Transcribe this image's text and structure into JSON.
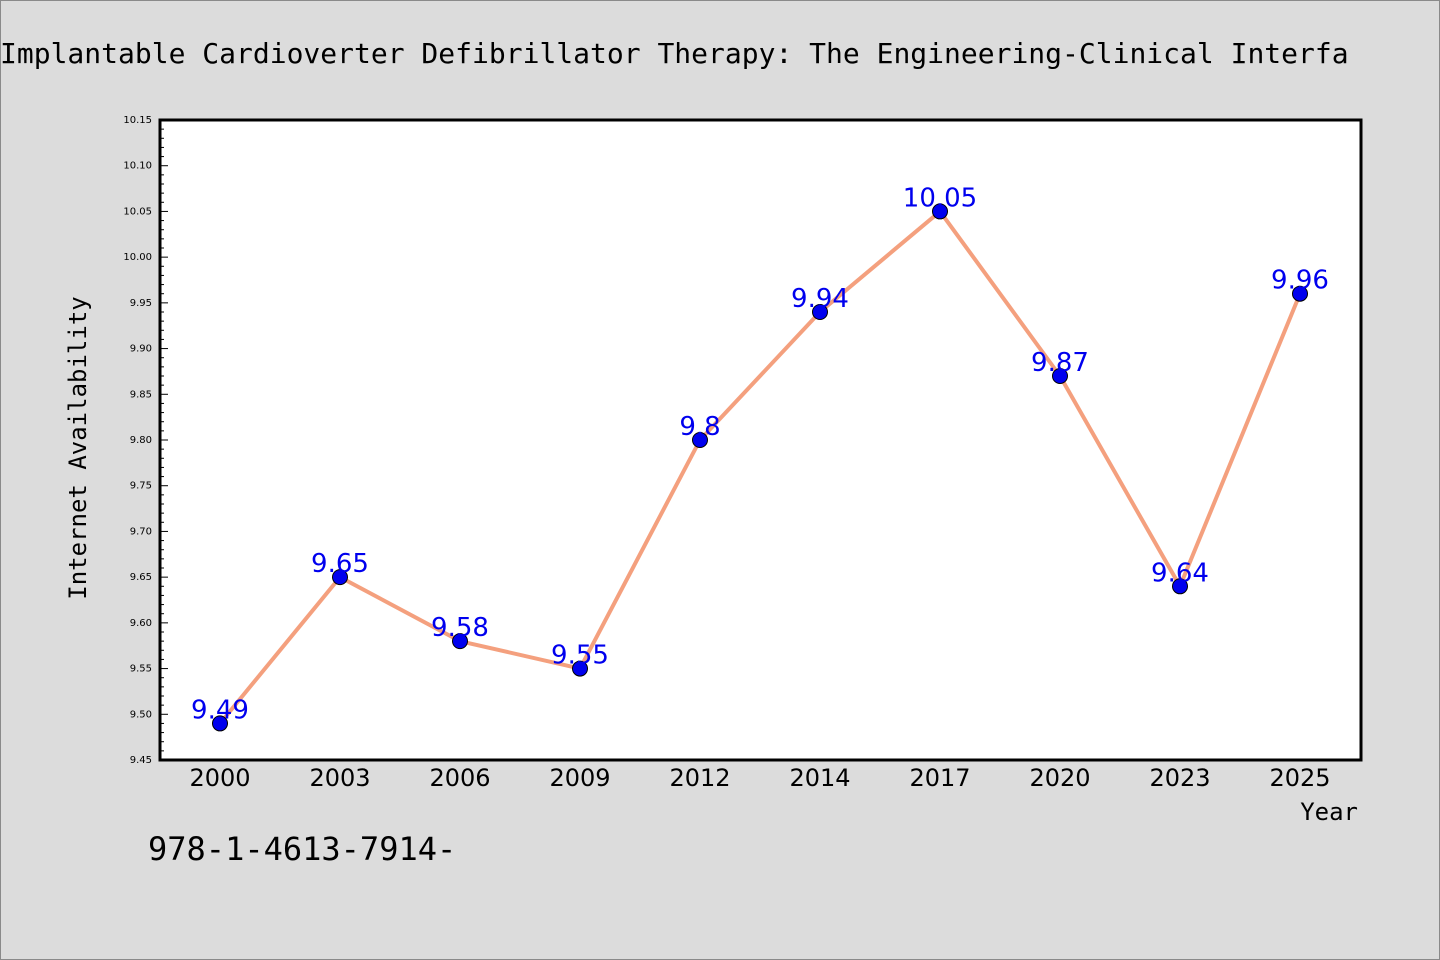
{
  "chart_data": {
    "type": "line",
    "title": "Implantable Cardioverter Defibrillator Therapy: The Engineering-Clinical Interfa",
    "xlabel": "Year",
    "ylabel": "Internet Availability",
    "categories": [
      "2000",
      "2003",
      "2006",
      "2009",
      "2012",
      "2014",
      "2017",
      "2020",
      "2023",
      "2025"
    ],
    "values": [
      9.49,
      9.65,
      9.58,
      9.55,
      9.8,
      9.94,
      10.05,
      9.87,
      9.64,
      9.96
    ],
    "data_labels": [
      "9.49",
      "9.65",
      "9.58",
      "9.55",
      "9.8",
      "9.94",
      "10.05",
      "9.87",
      "9.64",
      "9.96"
    ],
    "ylim": [
      9.45,
      10.15
    ],
    "y_ticks": [
      "9.45",
      "9.50",
      "9.55",
      "9.60",
      "9.65",
      "9.70",
      "9.75",
      "9.80",
      "9.85",
      "9.90",
      "9.95",
      "10.00",
      "10.05",
      "10.10",
      "10.15"
    ],
    "grid": false,
    "line_color": "#f4a07e",
    "marker_color": "#0000ee",
    "label_color": "#0000ee"
  },
  "footer": {
    "isbn": "978-1-4613-7914-"
  }
}
